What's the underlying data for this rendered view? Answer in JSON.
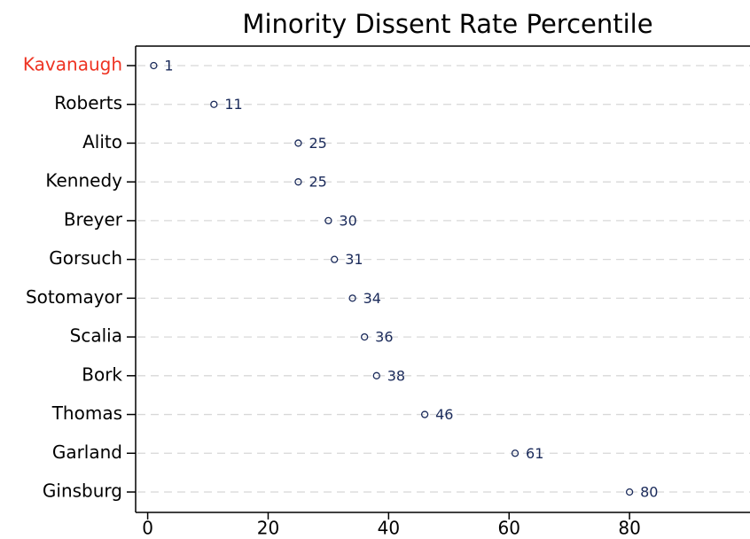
{
  "chart_data": {
    "type": "dot",
    "title": "Minority Dissent Rate Percentile",
    "categories": [
      "Kavanaugh",
      "Roberts",
      "Alito",
      "Kennedy",
      "Breyer",
      "Gorsuch",
      "Sotomayor",
      "Scalia",
      "Bork",
      "Thomas",
      "Garland",
      "Ginsburg"
    ],
    "values": [
      1,
      11,
      25,
      25,
      30,
      31,
      34,
      36,
      38,
      46,
      61,
      80
    ],
    "label_colors": [
      "#ee3322",
      "#000000",
      "#000000",
      "#000000",
      "#000000",
      "#000000",
      "#000000",
      "#000000",
      "#000000",
      "#000000",
      "#000000",
      "#000000"
    ],
    "color": "#1a2a5a",
    "xlim": [
      -2,
      100
    ],
    "xticks": [
      0,
      20,
      40,
      60,
      80
    ],
    "grid": true
  }
}
